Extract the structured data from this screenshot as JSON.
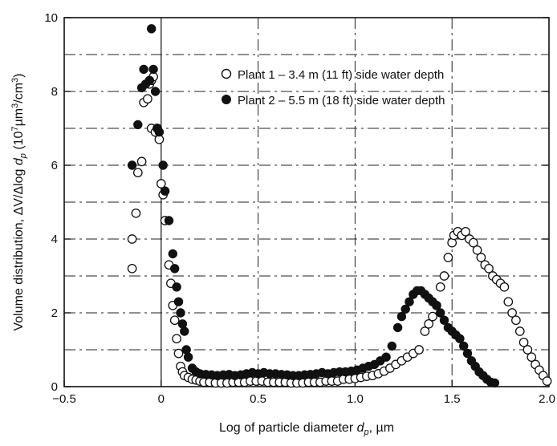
{
  "chart_data": {
    "type": "scatter",
    "xlabel_prefix": "Log of particle diameter",
    "xlabel_symbol": "d",
    "xlabel_sub": "p",
    "xlabel_suffix": ", µm",
    "ylabel_prefix": "Volume distribution, ΔV/Δlog ",
    "ylabel_symbol": "d",
    "ylabel_sub": "p",
    "ylabel_mid": " (10",
    "ylabel_sup1": "7",
    "ylabel_mid2": "µm",
    "ylabel_sup2": "3",
    "ylabel_mid3": "/cm",
    "ylabel_sup3": "3",
    "ylabel_end": ")",
    "xlim": [
      -0.5,
      2.0
    ],
    "ylim": [
      0,
      10
    ],
    "x_ticks": [
      -0.5,
      0,
      0.5,
      1.0,
      1.5,
      2.0
    ],
    "x_tick_labels": [
      "−0.5",
      "0",
      "0.5",
      "1.0",
      "1.5",
      "2.0"
    ],
    "y_ticks": [
      0,
      2,
      4,
      6,
      8,
      10
    ],
    "y_tick_labels": [
      "0",
      "2",
      "4",
      "6",
      "8",
      "10"
    ],
    "grid": true,
    "legend_position": "top-right",
    "series": [
      {
        "name": "Plant 1 – 3.4 m (11 ft) side water depth",
        "marker": "open-circle",
        "color": "#111111",
        "points": [
          [
            -0.15,
            3.2
          ],
          [
            -0.15,
            4.0
          ],
          [
            -0.13,
            4.7
          ],
          [
            -0.12,
            5.8
          ],
          [
            -0.1,
            6.1
          ],
          [
            -0.09,
            7.7
          ],
          [
            -0.07,
            7.8
          ],
          [
            -0.06,
            8.2
          ],
          [
            -0.05,
            8.3
          ],
          [
            -0.04,
            8.4
          ],
          [
            -0.05,
            7.0
          ],
          [
            -0.03,
            6.9
          ],
          [
            -0.02,
            7.0
          ],
          [
            -0.01,
            6.7
          ],
          [
            0.0,
            5.5
          ],
          [
            0.01,
            5.2
          ],
          [
            0.02,
            4.5
          ],
          [
            0.04,
            3.3
          ],
          [
            0.05,
            2.8
          ],
          [
            0.06,
            2.2
          ],
          [
            0.07,
            1.8
          ],
          [
            0.08,
            1.3
          ],
          [
            0.09,
            0.9
          ],
          [
            0.1,
            0.55
          ],
          [
            0.11,
            0.4
          ],
          [
            0.12,
            0.3
          ],
          [
            0.14,
            0.25
          ],
          [
            0.16,
            0.2
          ],
          [
            0.18,
            0.18
          ],
          [
            0.2,
            0.15
          ],
          [
            0.22,
            0.12
          ],
          [
            0.25,
            0.12
          ],
          [
            0.28,
            0.1
          ],
          [
            0.31,
            0.1
          ],
          [
            0.34,
            0.1
          ],
          [
            0.37,
            0.12
          ],
          [
            0.4,
            0.12
          ],
          [
            0.43,
            0.12
          ],
          [
            0.46,
            0.15
          ],
          [
            0.49,
            0.15
          ],
          [
            0.52,
            0.15
          ],
          [
            0.55,
            0.12
          ],
          [
            0.58,
            0.12
          ],
          [
            0.61,
            0.12
          ],
          [
            0.64,
            0.12
          ],
          [
            0.67,
            0.1
          ],
          [
            0.7,
            0.1
          ],
          [
            0.73,
            0.1
          ],
          [
            0.76,
            0.12
          ],
          [
            0.79,
            0.12
          ],
          [
            0.82,
            0.12
          ],
          [
            0.85,
            0.15
          ],
          [
            0.88,
            0.15
          ],
          [
            0.91,
            0.15
          ],
          [
            0.94,
            0.2
          ],
          [
            0.97,
            0.2
          ],
          [
            1.0,
            0.22
          ],
          [
            1.03,
            0.25
          ],
          [
            1.06,
            0.28
          ],
          [
            1.09,
            0.3
          ],
          [
            1.12,
            0.35
          ],
          [
            1.15,
            0.42
          ],
          [
            1.18,
            0.5
          ],
          [
            1.21,
            0.6
          ],
          [
            1.24,
            0.7
          ],
          [
            1.27,
            0.8
          ],
          [
            1.3,
            0.9
          ],
          [
            1.33,
            1.0
          ],
          [
            1.36,
            1.5
          ],
          [
            1.38,
            1.7
          ],
          [
            1.4,
            1.9
          ],
          [
            1.42,
            2.2
          ],
          [
            1.44,
            2.7
          ],
          [
            1.46,
            3.0
          ],
          [
            1.48,
            3.5
          ],
          [
            1.5,
            3.9
          ],
          [
            1.51,
            4.1
          ],
          [
            1.53,
            4.2
          ],
          [
            1.55,
            4.1
          ],
          [
            1.57,
            4.2
          ],
          [
            1.59,
            4.0
          ],
          [
            1.61,
            3.9
          ],
          [
            1.63,
            3.7
          ],
          [
            1.65,
            3.5
          ],
          [
            1.67,
            3.3
          ],
          [
            1.69,
            3.2
          ],
          [
            1.71,
            3.0
          ],
          [
            1.73,
            2.9
          ],
          [
            1.75,
            2.8
          ],
          [
            1.77,
            2.7
          ],
          [
            1.79,
            2.3
          ],
          [
            1.81,
            2.0
          ],
          [
            1.83,
            1.8
          ],
          [
            1.85,
            1.5
          ],
          [
            1.87,
            1.2
          ],
          [
            1.89,
            1.0
          ],
          [
            1.91,
            0.8
          ],
          [
            1.93,
            0.6
          ],
          [
            1.95,
            0.45
          ],
          [
            1.97,
            0.3
          ],
          [
            1.99,
            0.15
          ]
        ]
      },
      {
        "name": "Plant 2 – 5.5 m (18 ft) side water depth",
        "marker": "filled-circle",
        "color": "#111111",
        "points": [
          [
            -0.15,
            6.0
          ],
          [
            -0.12,
            7.1
          ],
          [
            -0.1,
            8.1
          ],
          [
            -0.09,
            8.6
          ],
          [
            -0.08,
            8.2
          ],
          [
            -0.06,
            8.3
          ],
          [
            -0.05,
            9.7
          ],
          [
            -0.04,
            8.6
          ],
          [
            -0.03,
            8.0
          ],
          [
            -0.02,
            7.0
          ],
          [
            -0.01,
            6.9
          ],
          [
            0.01,
            6.0
          ],
          [
            0.02,
            5.3
          ],
          [
            0.04,
            4.5
          ],
          [
            0.06,
            3.6
          ],
          [
            0.07,
            3.2
          ],
          [
            0.08,
            2.7
          ],
          [
            0.09,
            2.3
          ],
          [
            0.1,
            2.0
          ],
          [
            0.11,
            1.7
          ],
          [
            0.12,
            1.5
          ],
          [
            0.13,
            1.0
          ],
          [
            0.14,
            0.8
          ],
          [
            0.16,
            0.5
          ],
          [
            0.18,
            0.4
          ],
          [
            0.2,
            0.35
          ],
          [
            0.23,
            0.33
          ],
          [
            0.26,
            0.32
          ],
          [
            0.29,
            0.3
          ],
          [
            0.32,
            0.32
          ],
          [
            0.35,
            0.33
          ],
          [
            0.38,
            0.3
          ],
          [
            0.41,
            0.32
          ],
          [
            0.44,
            0.35
          ],
          [
            0.47,
            0.38
          ],
          [
            0.5,
            0.35
          ],
          [
            0.53,
            0.38
          ],
          [
            0.56,
            0.35
          ],
          [
            0.59,
            0.35
          ],
          [
            0.62,
            0.33
          ],
          [
            0.65,
            0.32
          ],
          [
            0.68,
            0.3
          ],
          [
            0.71,
            0.3
          ],
          [
            0.74,
            0.32
          ],
          [
            0.77,
            0.33
          ],
          [
            0.8,
            0.35
          ],
          [
            0.83,
            0.38
          ],
          [
            0.86,
            0.35
          ],
          [
            0.89,
            0.38
          ],
          [
            0.92,
            0.4
          ],
          [
            0.95,
            0.4
          ],
          [
            0.98,
            0.42
          ],
          [
            1.01,
            0.45
          ],
          [
            1.04,
            0.5
          ],
          [
            1.07,
            0.55
          ],
          [
            1.1,
            0.6
          ],
          [
            1.13,
            0.7
          ],
          [
            1.16,
            0.8
          ],
          [
            1.19,
            1.1
          ],
          [
            1.22,
            1.6
          ],
          [
            1.24,
            1.9
          ],
          [
            1.26,
            2.1
          ],
          [
            1.28,
            2.3
          ],
          [
            1.3,
            2.5
          ],
          [
            1.32,
            2.6
          ],
          [
            1.34,
            2.6
          ],
          [
            1.36,
            2.5
          ],
          [
            1.38,
            2.4
          ],
          [
            1.4,
            2.3
          ],
          [
            1.42,
            2.2
          ],
          [
            1.44,
            2.0
          ],
          [
            1.46,
            1.8
          ],
          [
            1.48,
            1.6
          ],
          [
            1.5,
            1.5
          ],
          [
            1.52,
            1.4
          ],
          [
            1.54,
            1.3
          ],
          [
            1.56,
            1.1
          ],
          [
            1.58,
            0.9
          ],
          [
            1.6,
            0.7
          ],
          [
            1.62,
            0.55
          ],
          [
            1.64,
            0.4
          ],
          [
            1.66,
            0.3
          ],
          [
            1.68,
            0.2
          ],
          [
            1.7,
            0.12
          ],
          [
            1.72,
            0.1
          ]
        ]
      }
    ],
    "legend": [
      {
        "label": "Plant 1 – 3.4 m (11 ft) side water depth",
        "marker": "open-circle"
      },
      {
        "label": "Plant 2 – 5.5 m (18 ft) side water depth",
        "marker": "filled-circle"
      }
    ]
  }
}
